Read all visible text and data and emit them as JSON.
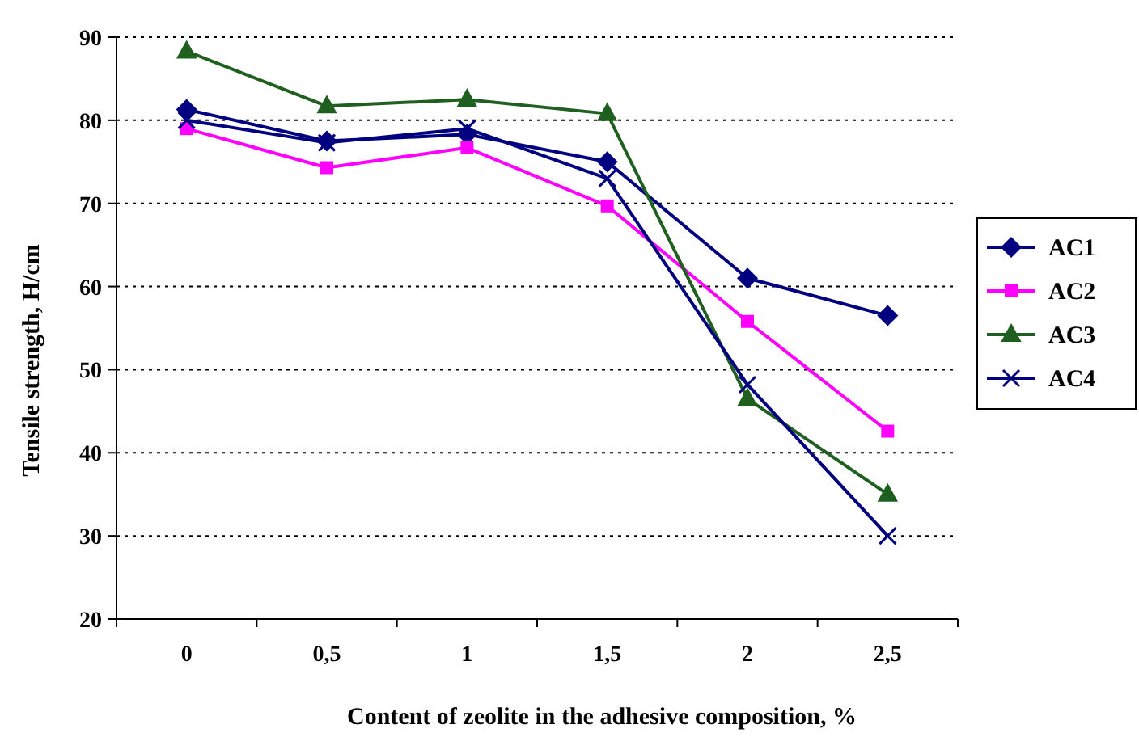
{
  "chart_data": {
    "type": "line",
    "xlabel": "Content of zeolite in the adhesive composition, %",
    "ylabel": "Tensile strength, H/cm",
    "categories": [
      "0",
      "0,5",
      "1",
      "1,5",
      "2",
      "2,5"
    ],
    "series": [
      {
        "name": "AC1",
        "color": "#000080",
        "marker": "diamond",
        "values": [
          81.3,
          77.5,
          78.3,
          75,
          61,
          56.5
        ]
      },
      {
        "name": "AC2",
        "color": "#ff00ff",
        "marker": "square",
        "values": [
          79,
          74.3,
          76.7,
          69.7,
          55.8,
          42.6
        ]
      },
      {
        "name": "AC3",
        "color": "#1f5f1f",
        "marker": "triangle",
        "values": [
          88.3,
          81.7,
          82.5,
          80.8,
          46.5,
          35
        ]
      },
      {
        "name": "AC4",
        "color": "#000080",
        "marker": "cross",
        "values": [
          80,
          77.3,
          79,
          73,
          48.2,
          30
        ]
      }
    ],
    "ylim": [
      20,
      90
    ],
    "yticks": [
      20,
      30,
      40,
      50,
      60,
      70,
      80,
      90
    ],
    "grid": "y",
    "legend": "right"
  }
}
